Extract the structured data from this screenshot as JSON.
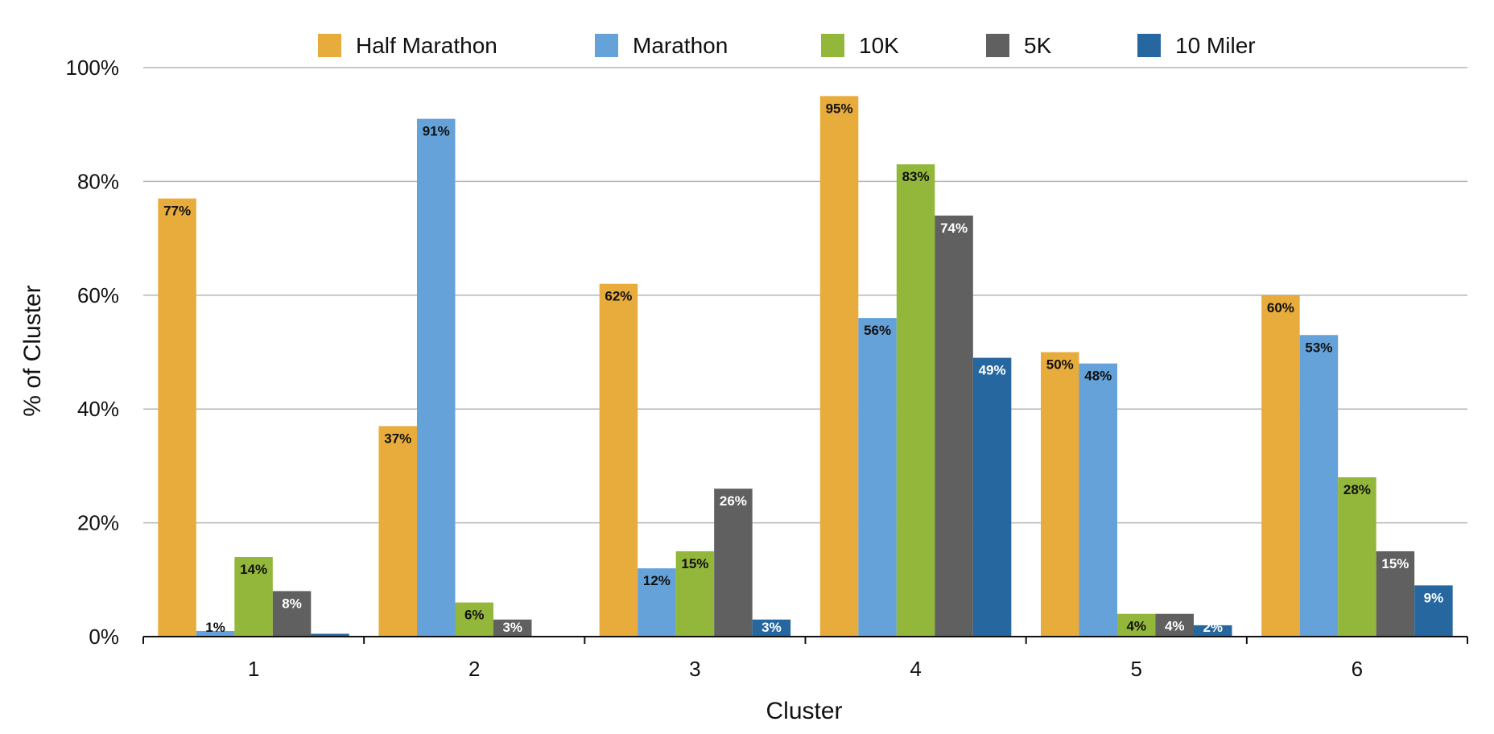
{
  "chart_data": {
    "type": "bar",
    "xlabel": "Cluster",
    "ylabel": "% of Cluster",
    "ylim": [
      0,
      100
    ],
    "yticks": [
      "0%",
      "20%",
      "40%",
      "60%",
      "80%",
      "100%"
    ],
    "ytick_values": [
      0,
      20,
      40,
      60,
      80,
      100
    ],
    "grid": true,
    "legend_position": "top",
    "categories": [
      "1",
      "2",
      "3",
      "4",
      "5",
      "6"
    ],
    "series": [
      {
        "name": "Half Marathon",
        "color": "#E8AC3C",
        "label_color": "#111111",
        "values": [
          77,
          37,
          62,
          95,
          50,
          60
        ],
        "labels": [
          "77%",
          "37%",
          "62%",
          "95%",
          "50%",
          "60%"
        ]
      },
      {
        "name": "Marathon",
        "color": "#64A2D9",
        "label_color": "#111111",
        "values": [
          1,
          91,
          12,
          56,
          48,
          53
        ],
        "labels": [
          "1%",
          "91%",
          "12%",
          "56%",
          "48%",
          "53%"
        ]
      },
      {
        "name": "10K",
        "color": "#93B73B",
        "label_color": "#111111",
        "values": [
          14,
          6,
          15,
          83,
          4,
          28
        ],
        "labels": [
          "14%",
          "6%",
          "15%",
          "83%",
          "4%",
          "28%"
        ]
      },
      {
        "name": "5K",
        "color": "#606060",
        "label_color": "#ffffff",
        "values": [
          8,
          3,
          26,
          74,
          4,
          15
        ],
        "labels": [
          "8%",
          "3%",
          "26%",
          "74%",
          "4%",
          "15%"
        ]
      },
      {
        "name": "10 Miler",
        "color": "#2767A0",
        "label_color": "#ffffff",
        "values": [
          0.5,
          0,
          3,
          49,
          2,
          9
        ],
        "labels": [
          "",
          "",
          "3%",
          "49%",
          "2%",
          "9%"
        ]
      }
    ]
  }
}
